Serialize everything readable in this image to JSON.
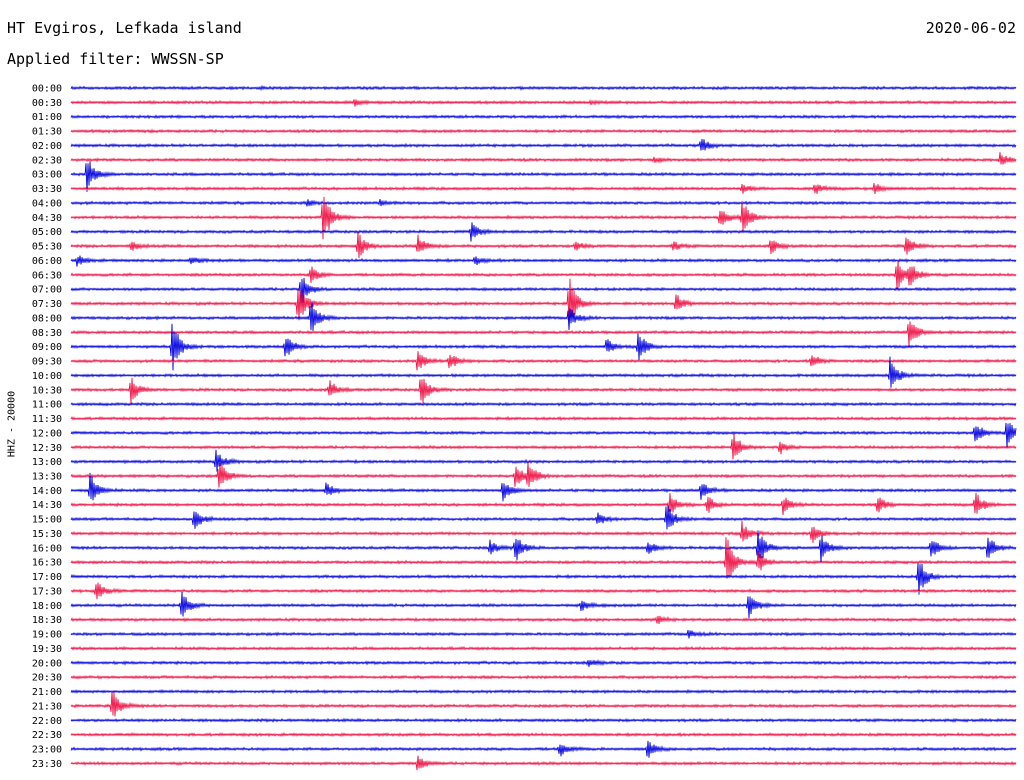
{
  "header": {
    "station": "HT Evgiros, Lefkada island",
    "filter": "Applied filter: WWSSN-SP",
    "date": "2020-06-02"
  },
  "chart_data": {
    "type": "line",
    "title": "HT Evgiros, Lefkada island",
    "subtitle": "Applied filter: WWSSN-SP",
    "date": "2020-06-02",
    "ylabel": "HHZ - 20000",
    "trace_minutes": 30,
    "colors": {
      "odd_trace": "#0000dd",
      "even_trace": "#ee1144"
    },
    "rows": [
      "00:00",
      "00:30",
      "01:00",
      "01:30",
      "02:00",
      "02:30",
      "03:00",
      "03:30",
      "04:00",
      "04:30",
      "05:00",
      "05:30",
      "06:00",
      "06:30",
      "07:00",
      "07:30",
      "08:00",
      "08:30",
      "09:00",
      "09:30",
      "10:00",
      "10:30",
      "11:00",
      "11:30",
      "12:00",
      "12:30",
      "13:00",
      "13:30",
      "14:00",
      "14:30",
      "15:00",
      "15:30",
      "16:00",
      "16:30",
      "17:00",
      "17:30",
      "18:00",
      "18:30",
      "19:00",
      "19:30",
      "20:00",
      "20:30",
      "21:00",
      "21:30",
      "22:00",
      "22:30",
      "23:00",
      "23:30"
    ],
    "events": [
      {
        "row": 0,
        "minute": 6.0,
        "amp": 1.0
      },
      {
        "row": 1,
        "minute": 9.0,
        "amp": 4.0
      },
      {
        "row": 1,
        "minute": 16.5,
        "amp": 2.0
      },
      {
        "row": 4,
        "minute": 20.0,
        "amp": 8.0
      },
      {
        "row": 5,
        "minute": 18.5,
        "amp": 3.0
      },
      {
        "row": 5,
        "minute": 29.5,
        "amp": 8.0
      },
      {
        "row": 6,
        "minute": 0.5,
        "amp": 20.0
      },
      {
        "row": 7,
        "minute": 21.3,
        "amp": 5.0
      },
      {
        "row": 7,
        "minute": 23.6,
        "amp": 7.0
      },
      {
        "row": 7,
        "minute": 25.5,
        "amp": 6.0
      },
      {
        "row": 8,
        "minute": 7.5,
        "amp": 3.0
      },
      {
        "row": 8,
        "minute": 9.8,
        "amp": 3.0
      },
      {
        "row": 9,
        "minute": 8.0,
        "amp": 30.0
      },
      {
        "row": 9,
        "minute": 20.6,
        "amp": 12.0
      },
      {
        "row": 9,
        "minute": 21.3,
        "amp": 20.0
      },
      {
        "row": 10,
        "minute": 12.7,
        "amp": 10.0
      },
      {
        "row": 11,
        "minute": 1.9,
        "amp": 5.0
      },
      {
        "row": 11,
        "minute": 9.1,
        "amp": 15.0
      },
      {
        "row": 11,
        "minute": 11.0,
        "amp": 12.0
      },
      {
        "row": 11,
        "minute": 16.0,
        "amp": 5.0
      },
      {
        "row": 11,
        "minute": 19.1,
        "amp": 5.0
      },
      {
        "row": 11,
        "minute": 22.2,
        "amp": 8.0
      },
      {
        "row": 11,
        "minute": 26.5,
        "amp": 12.0
      },
      {
        "row": 12,
        "minute": 0.2,
        "amp": 6.0
      },
      {
        "row": 12,
        "minute": 3.8,
        "amp": 4.0
      },
      {
        "row": 12,
        "minute": 12.8,
        "amp": 5.0
      },
      {
        "row": 13,
        "minute": 7.6,
        "amp": 10.0
      },
      {
        "row": 13,
        "minute": 26.2,
        "amp": 18.0
      },
      {
        "row": 13,
        "minute": 26.6,
        "amp": 14.0
      },
      {
        "row": 14,
        "minute": 7.3,
        "amp": 18.0
      },
      {
        "row": 15,
        "minute": 7.2,
        "amp": 25.0
      },
      {
        "row": 15,
        "minute": 15.8,
        "amp": 30.0
      },
      {
        "row": 15,
        "minute": 19.2,
        "amp": 10.0
      },
      {
        "row": 16,
        "minute": 7.6,
        "amp": 20.0
      },
      {
        "row": 16,
        "minute": 15.8,
        "amp": 12.0
      },
      {
        "row": 17,
        "minute": 26.6,
        "amp": 18.0
      },
      {
        "row": 18,
        "minute": 3.2,
        "amp": 30.0
      },
      {
        "row": 18,
        "minute": 6.8,
        "amp": 14.0
      },
      {
        "row": 18,
        "minute": 17.0,
        "amp": 8.0
      },
      {
        "row": 18,
        "minute": 18.0,
        "amp": 18.0
      },
      {
        "row": 19,
        "minute": 11.0,
        "amp": 12.0
      },
      {
        "row": 19,
        "minute": 12.0,
        "amp": 10.0
      },
      {
        "row": 19,
        "minute": 23.5,
        "amp": 8.0
      },
      {
        "row": 20,
        "minute": 26.0,
        "amp": 20.0
      },
      {
        "row": 21,
        "minute": 1.9,
        "amp": 14.0
      },
      {
        "row": 21,
        "minute": 8.2,
        "amp": 10.0
      },
      {
        "row": 21,
        "minute": 11.1,
        "amp": 18.0
      },
      {
        "row": 24,
        "minute": 28.7,
        "amp": 12.0
      },
      {
        "row": 24,
        "minute": 29.7,
        "amp": 16.0
      },
      {
        "row": 25,
        "minute": 21.0,
        "amp": 18.0
      },
      {
        "row": 25,
        "minute": 22.5,
        "amp": 7.0
      },
      {
        "row": 26,
        "minute": 4.6,
        "amp": 12.0
      },
      {
        "row": 27,
        "minute": 4.7,
        "amp": 18.0
      },
      {
        "row": 27,
        "minute": 14.1,
        "amp": 12.0
      },
      {
        "row": 27,
        "minute": 14.5,
        "amp": 16.0
      },
      {
        "row": 28,
        "minute": 0.6,
        "amp": 18.0
      },
      {
        "row": 28,
        "minute": 8.1,
        "amp": 8.0
      },
      {
        "row": 28,
        "minute": 13.7,
        "amp": 12.0
      },
      {
        "row": 28,
        "minute": 20.0,
        "amp": 10.0
      },
      {
        "row": 29,
        "minute": 19.0,
        "amp": 12.0
      },
      {
        "row": 29,
        "minute": 20.2,
        "amp": 10.0
      },
      {
        "row": 29,
        "minute": 22.6,
        "amp": 10.0
      },
      {
        "row": 29,
        "minute": 25.6,
        "amp": 10.0
      },
      {
        "row": 29,
        "minute": 28.7,
        "amp": 14.0
      },
      {
        "row": 30,
        "minute": 3.9,
        "amp": 12.0
      },
      {
        "row": 30,
        "minute": 16.7,
        "amp": 8.0
      },
      {
        "row": 30,
        "minute": 18.9,
        "amp": 18.0
      },
      {
        "row": 31,
        "minute": 21.3,
        "amp": 12.0
      },
      {
        "row": 31,
        "minute": 23.5,
        "amp": 12.0
      },
      {
        "row": 32,
        "minute": 13.3,
        "amp": 8.0
      },
      {
        "row": 32,
        "minute": 14.1,
        "amp": 16.0
      },
      {
        "row": 32,
        "minute": 18.3,
        "amp": 8.0
      },
      {
        "row": 32,
        "minute": 21.8,
        "amp": 22.0
      },
      {
        "row": 32,
        "minute": 23.8,
        "amp": 16.0
      },
      {
        "row": 32,
        "minute": 27.3,
        "amp": 12.0
      },
      {
        "row": 32,
        "minute": 29.1,
        "amp": 16.0
      },
      {
        "row": 33,
        "minute": 20.8,
        "amp": 30.0
      },
      {
        "row": 33,
        "minute": 21.8,
        "amp": 12.0
      },
      {
        "row": 34,
        "minute": 26.9,
        "amp": 22.0
      },
      {
        "row": 35,
        "minute": 0.8,
        "amp": 10.0
      },
      {
        "row": 36,
        "minute": 3.5,
        "amp": 16.0
      },
      {
        "row": 36,
        "minute": 16.2,
        "amp": 6.0
      },
      {
        "row": 36,
        "minute": 21.5,
        "amp": 14.0
      },
      {
        "row": 37,
        "minute": 18.6,
        "amp": 5.0
      },
      {
        "row": 38,
        "minute": 19.6,
        "amp": 4.0
      },
      {
        "row": 40,
        "minute": 16.4,
        "amp": 4.0
      },
      {
        "row": 43,
        "minute": 1.3,
        "amp": 18.0
      },
      {
        "row": 46,
        "minute": 15.5,
        "amp": 8.0
      },
      {
        "row": 46,
        "minute": 18.3,
        "amp": 10.0
      },
      {
        "row": 47,
        "minute": 11.0,
        "amp": 8.0
      }
    ]
  }
}
